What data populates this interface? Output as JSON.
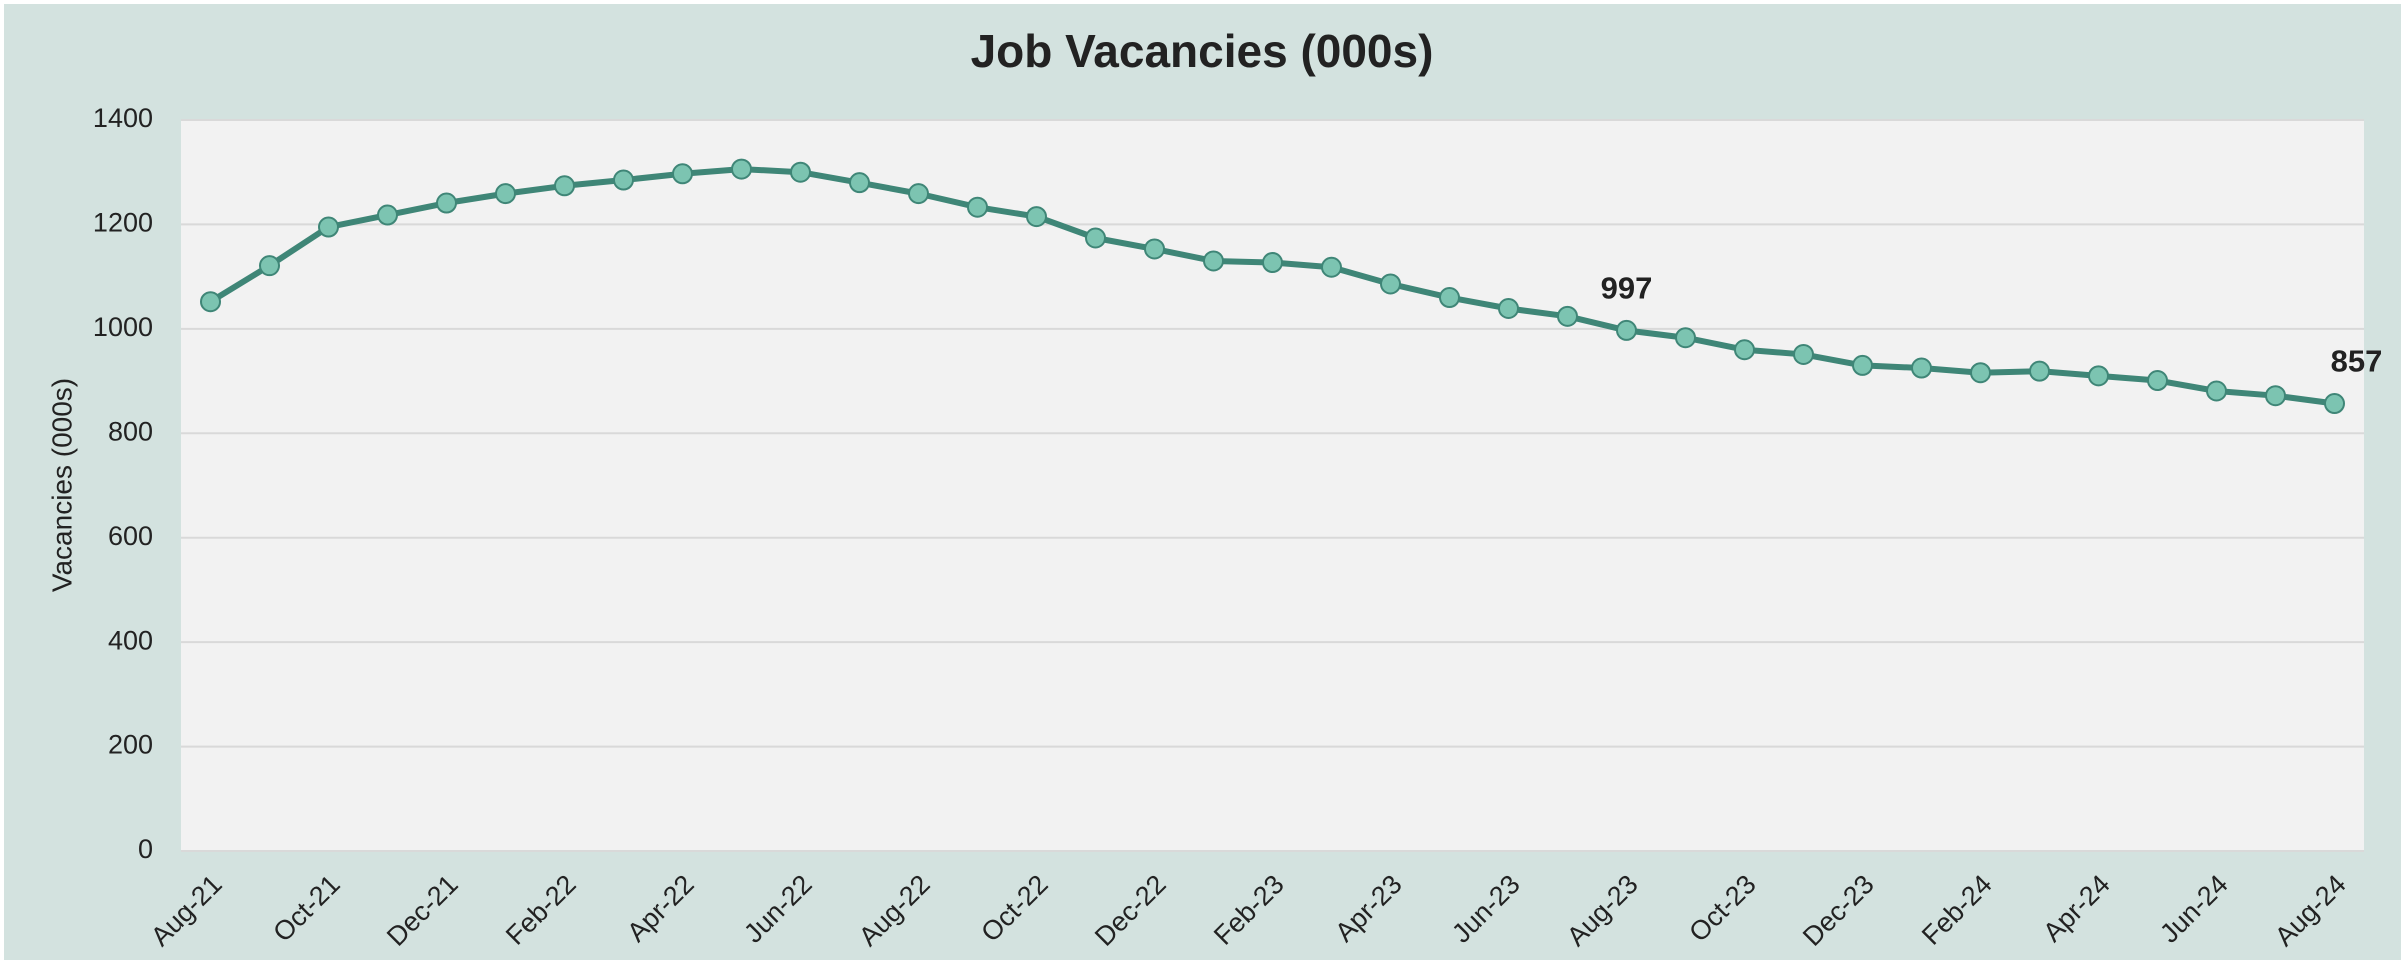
{
  "chart_data": {
    "type": "line",
    "title": "Job Vacancies (000s)",
    "y_label": "Vacancies (000s)",
    "categories": [
      "Aug-21",
      null,
      "Oct-21",
      null,
      "Dec-21",
      null,
      "Feb-22",
      null,
      "Apr-22",
      null,
      "Jun-22",
      null,
      "Aug-22",
      null,
      "Oct-22",
      null,
      "Dec-22",
      null,
      "Feb-23",
      null,
      "Apr-23",
      null,
      "Jun-23",
      null,
      "Aug-23",
      null,
      "Oct-23",
      null,
      "Dec-23",
      null,
      "Feb-24",
      null,
      "Apr-24",
      null,
      "Jun-24",
      null,
      "Aug-24"
    ],
    "series": [
      {
        "name": "Job Vacancies",
        "color": "#3f8677",
        "marker_color": "#7cc4b1",
        "values": [
          1052,
          1121,
          1195,
          1218,
          1241,
          1259,
          1274,
          1285,
          1297,
          1306,
          1300,
          1280,
          1259,
          1233,
          1215,
          1174,
          1153,
          1130,
          1127,
          1118,
          1086,
          1060,
          1039,
          1024,
          997,
          983,
          960,
          951,
          930,
          925,
          916,
          919,
          910,
          901,
          881,
          872,
          857
        ]
      }
    ],
    "data_labels_at": [
      24,
      36
    ],
    "ylim": [
      0,
      1400
    ],
    "yticks": [
      0,
      200,
      400,
      600,
      800,
      1000,
      1200,
      1400
    ],
    "grid": true
  }
}
